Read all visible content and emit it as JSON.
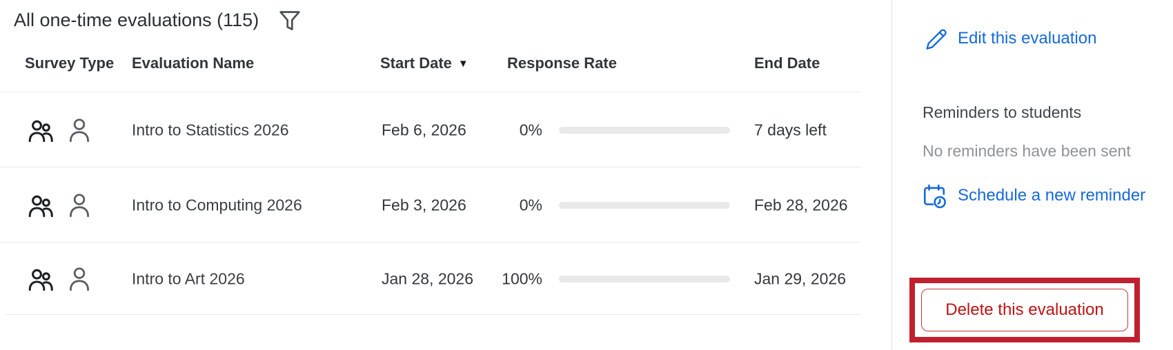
{
  "table": {
    "title": "All one-time evaluations (115)",
    "filter_icon": "funnel-filter-icon",
    "columns": {
      "survey_type": "Survey Type",
      "evaluation_name": "Evaluation Name",
      "start_date": "Start Date",
      "response_rate": "Response Rate",
      "end_date": "End Date"
    },
    "sort": {
      "column": "Start Date",
      "direction": "descending",
      "arrow": "▼"
    },
    "rows": [
      {
        "survey_type_icons": [
          "people-group-icon",
          "person-icon"
        ],
        "evaluation_name": "Intro to Statistics 2026",
        "start_date": "Feb 6, 2026",
        "response_rate_label": "0%",
        "response_rate_value": 0,
        "end_date": "7 days left"
      },
      {
        "survey_type_icons": [
          "people-group-icon",
          "person-icon"
        ],
        "evaluation_name": "Intro to Computing 2026",
        "start_date": "Feb 3, 2026",
        "response_rate_label": "0%",
        "response_rate_value": 0,
        "end_date": "Feb 28, 2026"
      },
      {
        "survey_type_icons": [
          "people-group-icon",
          "person-icon"
        ],
        "evaluation_name": "Intro to Art 2026",
        "start_date": "Jan 28, 2026",
        "response_rate_label": "100%",
        "response_rate_value": 100,
        "end_date": "Jan 29, 2026"
      }
    ]
  },
  "side_panel": {
    "edit_link": "Edit this evaluation",
    "edit_icon": "pencil-icon",
    "reminders_heading": "Reminders to students",
    "reminders_status": "No reminders have been sent",
    "schedule_link": "Schedule a new reminder",
    "schedule_icon": "calendar-clock-icon",
    "delete_button": "Delete this evaluation"
  },
  "colors": {
    "link_blue": "#1569dd",
    "progress_track": "#e9e9e9",
    "progress_fill": "#6d9bd1",
    "delete_text_red": "#bf1212",
    "highlight_box_red": "#c0202e",
    "text_dark": "#33373c",
    "text_gray": "#8d929b",
    "divider_gray": "#eaeaea"
  }
}
